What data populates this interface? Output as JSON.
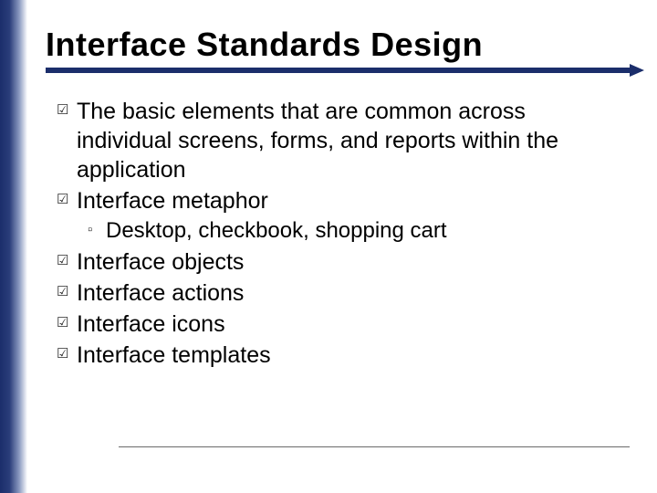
{
  "slide": {
    "title": "Interface Standards Design",
    "title_color": "#000000",
    "title_fontsize": 36,
    "underline_color": "#1b2e6b",
    "left_stripe_gradient": [
      "#1b2e6b",
      "#2a3d7a",
      "#8a99c0",
      "#ffffff"
    ],
    "bullet_glyph": "☑",
    "sub_bullet_glyph": "▫",
    "body_fontsize": 25,
    "sub_body_fontsize": 24,
    "text_color": "#000000",
    "items": [
      {
        "text": "The basic elements that are common across individual screens, forms, and reports within the application",
        "children": []
      },
      {
        "text": "Interface metaphor",
        "children": [
          {
            "text": "Desktop, checkbook, shopping cart"
          }
        ]
      },
      {
        "text": "Interface objects",
        "children": []
      },
      {
        "text": "Interface actions",
        "children": []
      },
      {
        "text": "Interface icons",
        "children": []
      },
      {
        "text": "Interface templates",
        "children": []
      }
    ]
  }
}
